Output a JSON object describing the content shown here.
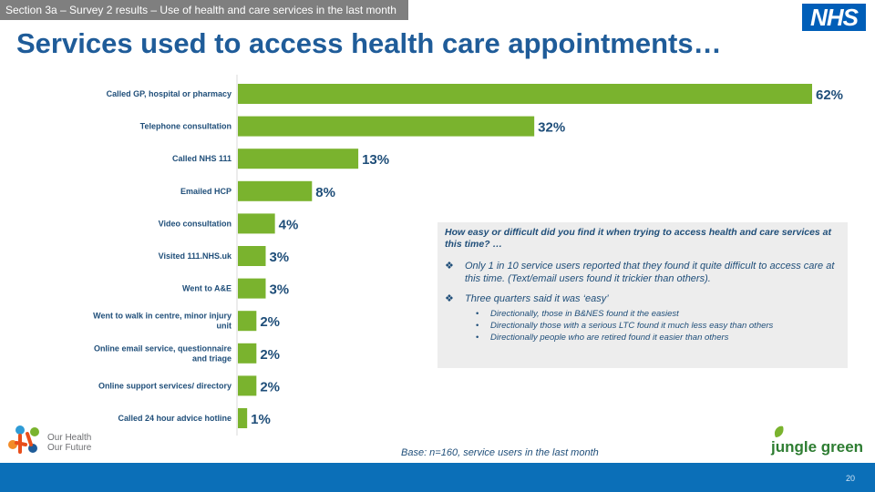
{
  "header": {
    "section_tag": "Section 3a – Survey 2 results – Use of health and care services in the last month",
    "title": "Services used to access health care appointments…",
    "logo_text": "NHS"
  },
  "chart_data": {
    "type": "bar",
    "orientation": "horizontal",
    "title": "Services used to access health care appointments…",
    "categories": [
      "Called GP, hospital or pharmacy",
      "Telephone consultation",
      "Called NHS 111",
      "Emailed HCP",
      "Video consultation",
      "Visited 111.NHS.uk",
      "Went to A&E",
      "Went to walk in centre, minor injury unit",
      "Online email service, questionnaire and triage",
      "Online support services/ directory",
      "Called 24 hour advice hotline"
    ],
    "values": [
      62,
      32,
      13,
      8,
      4,
      3,
      3,
      2,
      2,
      2,
      1
    ],
    "value_labels": [
      "62%",
      "32%",
      "13%",
      "8%",
      "4%",
      "3%",
      "3%",
      "2%",
      "2%",
      "2%",
      "1%"
    ],
    "unit": "%",
    "xlim": [
      0,
      62
    ],
    "bar_color": "#7ab32e",
    "grid": false
  },
  "info_box": {
    "question": "How easy or difficult did you find it when trying to access health and care services at this time? …",
    "findings": [
      {
        "text": "Only 1 in 10 service users reported that they found it quite difficult to access care at this time. (Text/email users found it trickier than others).",
        "subpoints": []
      },
      {
        "text": "Three quarters said it was ‘easy’",
        "subpoints": [
          "Directionally, those in B&NES found it the easiest",
          "Directionally those with a serious LTC found it much less easy than others",
          "Directionally people who are retired found it easier than others"
        ]
      }
    ]
  },
  "footer": {
    "base_note": "Base: n=160, service users in the last month",
    "page_number": "20",
    "left_logo_line1": "Our Health",
    "left_logo_line2": "Our Future",
    "right_logo": "jungle green"
  },
  "colors": {
    "title": "#1f5c99",
    "text": "#1f4e79",
    "bar": "#7ab32e",
    "footer": "#0b6fb8",
    "nhs_blue": "#005eb8"
  }
}
